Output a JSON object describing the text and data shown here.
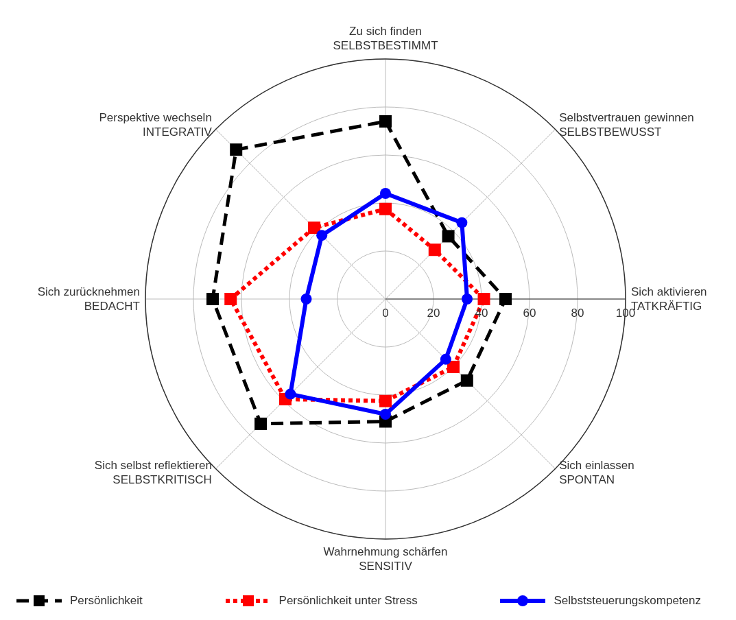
{
  "chart_data": {
    "type": "radar",
    "categories": [
      "Zu sich finden\nSELBSTBESTIMMT",
      "Selbstvertrauen gewinnen\nSELBSTBEWUSST",
      "Sich aktivieren\nTATKRÄFTIG",
      "Sich einlassen\nSPONTAN",
      "Wahrnehmung schärfen\nSENSITIV",
      "Sich selbst reflektieren\nSELBSTKRITISCH",
      "Sich zurücknehmen\nBEDACHT",
      "Perspektive wechseln\nINTEGRATIV"
    ],
    "series": [
      {
        "name": "Persönlichkeit",
        "color": "#000000",
        "marker": "square",
        "line_style": "dashed",
        "values": [
          74,
          37,
          50,
          48,
          51,
          73.5,
          72,
          88
        ]
      },
      {
        "name": "Persönlichkeit unter Stress",
        "color": "#ff0000",
        "marker": "square",
        "line_style": "dotted",
        "values": [
          37.5,
          29,
          41,
          40,
          42.5,
          59,
          64.5,
          42
        ]
      },
      {
        "name": "Selbststeuerungskompetenz",
        "color": "#0000ff",
        "marker": "circle",
        "line_style": "solid",
        "values": [
          44,
          45,
          34,
          35.5,
          48,
          56,
          33,
          37.5
        ]
      }
    ],
    "ylim": [
      0,
      100
    ],
    "yticks": [
      0,
      20,
      40,
      60,
      80,
      100
    ],
    "grid": true,
    "legend": "bottom"
  }
}
